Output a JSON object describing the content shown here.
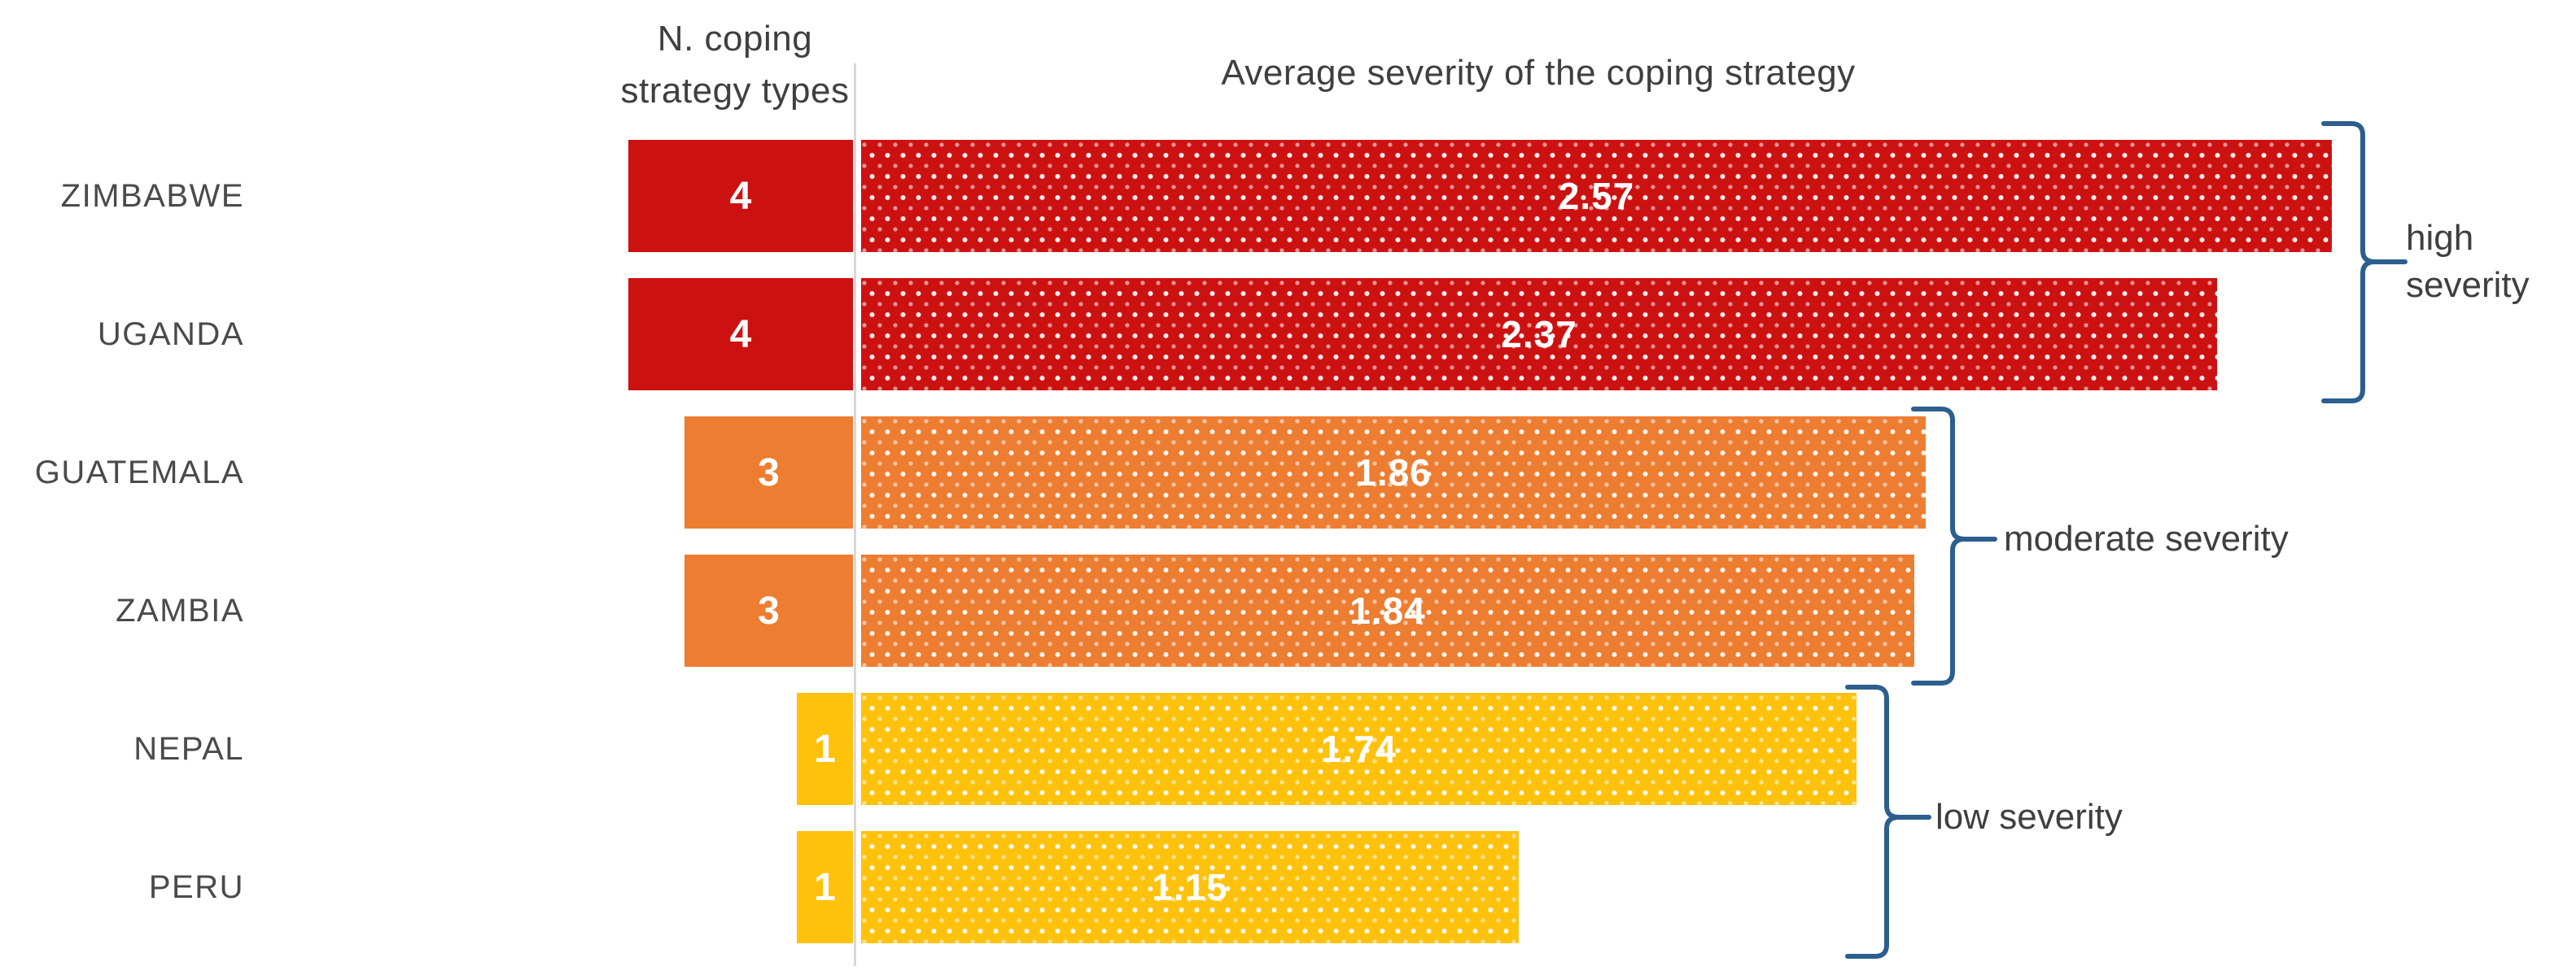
{
  "chart_data": {
    "type": "bar",
    "orientation": "horizontal",
    "title": "",
    "categories": [
      "ZIMBABWE",
      "UGANDA",
      "GUATEMALA",
      "ZAMBIA",
      "NEPAL",
      "PERU"
    ],
    "series": [
      {
        "name": "N. coping strategy types",
        "values": [
          4,
          4,
          3,
          3,
          1,
          1
        ]
      },
      {
        "name": "Average severity of the coping strategy",
        "values": [
          2.57,
          2.37,
          1.86,
          1.84,
          1.74,
          1.15
        ]
      }
    ],
    "axis_visible": false,
    "bars_proportional_from": 0,
    "grid": "single vertical baseline between the two bar series",
    "legend_position": "none",
    "groups": [
      {
        "label": "high severity",
        "countries": [
          "ZIMBABWE",
          "UGANDA"
        ],
        "color": "#CC1111"
      },
      {
        "label": "moderate severity",
        "countries": [
          "GUATEMALA",
          "ZAMBIA"
        ],
        "color": "#ED7D31"
      },
      {
        "label": "low severity",
        "countries": [
          "NEPAL",
          "PERU"
        ],
        "color": "#FEC20D"
      }
    ],
    "bar_value_text_color": "#FFFFFF",
    "bracket_color": "#2C5E8E",
    "text_color": "#3F3F3F"
  },
  "headers": {
    "count": "N. coping strategy types",
    "severity": "Average severity of the coping strategy"
  }
}
